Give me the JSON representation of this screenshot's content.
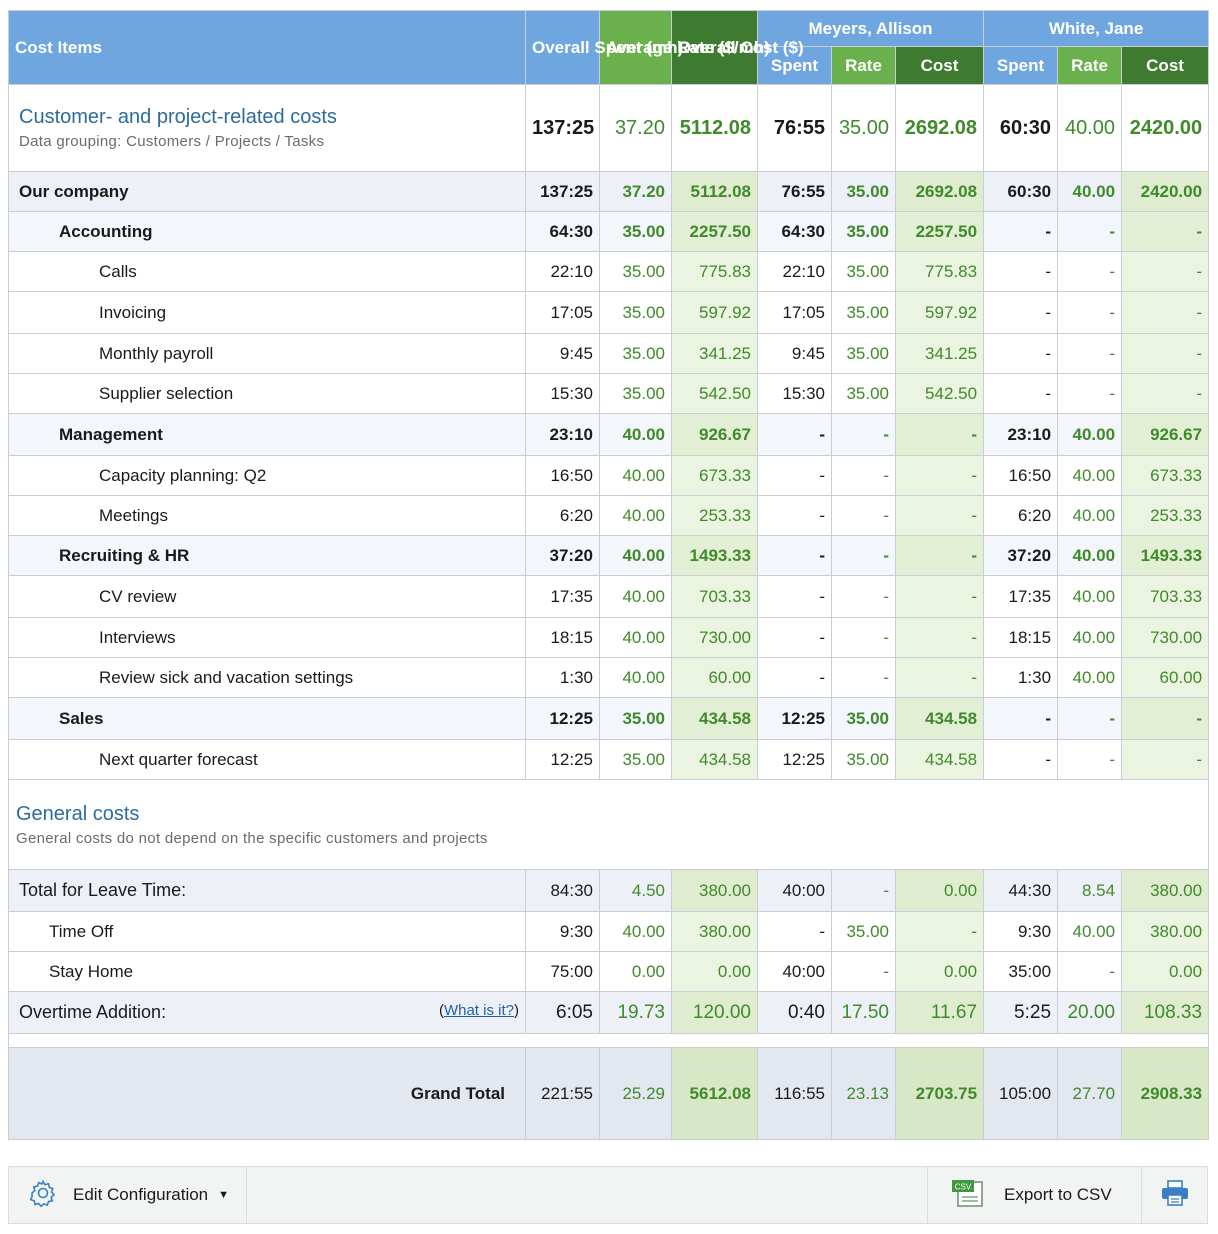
{
  "header": {
    "cost_items": "Cost Items",
    "overall_spent": "Overall Spent (mh)",
    "average_rate": "Average Rate ($/mh)",
    "overall_cost": "Overall Cost ($)",
    "person1": "Meyers, Allison",
    "person2": "White, Jane",
    "spent": "Spent",
    "rate": "Rate",
    "cost": "Cost"
  },
  "section1": {
    "title": "Customer- and project-related costs",
    "subtitle": "Data grouping: Customers / Projects / Tasks",
    "values": [
      "137:25",
      "37.20",
      "5112.08",
      "76:55",
      "35.00",
      "2692.08",
      "60:30",
      "40.00",
      "2420.00"
    ]
  },
  "rows": [
    {
      "label": "Our company",
      "values": [
        "137:25",
        "37.20",
        "5112.08",
        "76:55",
        "35.00",
        "2692.08",
        "60:30",
        "40.00",
        "2420.00"
      ]
    },
    {
      "label": "Accounting",
      "values": [
        "64:30",
        "35.00",
        "2257.50",
        "64:30",
        "35.00",
        "2257.50",
        "-",
        "-",
        "-"
      ]
    },
    {
      "label": "Calls",
      "values": [
        "22:10",
        "35.00",
        "775.83",
        "22:10",
        "35.00",
        "775.83",
        "-",
        "-",
        "-"
      ]
    },
    {
      "label": "Invoicing",
      "values": [
        "17:05",
        "35.00",
        "597.92",
        "17:05",
        "35.00",
        "597.92",
        "-",
        "-",
        "-"
      ]
    },
    {
      "label": "Monthly payroll",
      "values": [
        "9:45",
        "35.00",
        "341.25",
        "9:45",
        "35.00",
        "341.25",
        "-",
        "-",
        "-"
      ]
    },
    {
      "label": "Supplier selection",
      "values": [
        "15:30",
        "35.00",
        "542.50",
        "15:30",
        "35.00",
        "542.50",
        "-",
        "-",
        "-"
      ]
    },
    {
      "label": "Management",
      "values": [
        "23:10",
        "40.00",
        "926.67",
        "-",
        "-",
        "-",
        "23:10",
        "40.00",
        "926.67"
      ]
    },
    {
      "label": "Capacity planning: Q2",
      "values": [
        "16:50",
        "40.00",
        "673.33",
        "-",
        "-",
        "-",
        "16:50",
        "40.00",
        "673.33"
      ]
    },
    {
      "label": "Meetings",
      "values": [
        "6:20",
        "40.00",
        "253.33",
        "-",
        "-",
        "-",
        "6:20",
        "40.00",
        "253.33"
      ]
    },
    {
      "label": "Recruiting & HR",
      "values": [
        "37:20",
        "40.00",
        "1493.33",
        "-",
        "-",
        "-",
        "37:20",
        "40.00",
        "1493.33"
      ]
    },
    {
      "label": "CV review",
      "values": [
        "17:35",
        "40.00",
        "703.33",
        "-",
        "-",
        "-",
        "17:35",
        "40.00",
        "703.33"
      ]
    },
    {
      "label": "Interviews",
      "values": [
        "18:15",
        "40.00",
        "730.00",
        "-",
        "-",
        "-",
        "18:15",
        "40.00",
        "730.00"
      ]
    },
    {
      "label": "Review sick and vacation settings",
      "values": [
        "1:30",
        "40.00",
        "60.00",
        "-",
        "-",
        "-",
        "1:30",
        "40.00",
        "60.00"
      ]
    },
    {
      "label": "Sales",
      "values": [
        "12:25",
        "35.00",
        "434.58",
        "12:25",
        "35.00",
        "434.58",
        "-",
        "-",
        "-"
      ]
    },
    {
      "label": "Next quarter forecast",
      "values": [
        "12:25",
        "35.00",
        "434.58",
        "12:25",
        "35.00",
        "434.58",
        "-",
        "-",
        "-"
      ]
    }
  ],
  "section2": {
    "title": "General costs",
    "subtitle": "General costs do not depend on the specific customers and projects"
  },
  "leave": {
    "label": "Total for Leave Time:",
    "values": [
      "84:30",
      "4.50",
      "380.00",
      "40:00",
      "-",
      "0.00",
      "44:30",
      "8.54",
      "380.00"
    ]
  },
  "leave_rows": [
    {
      "label": "Time Off",
      "values": [
        "9:30",
        "40.00",
        "380.00",
        "-",
        "35.00",
        "-",
        "9:30",
        "40.00",
        "380.00"
      ]
    },
    {
      "label": "Stay Home",
      "values": [
        "75:00",
        "0.00",
        "0.00",
        "40:00",
        "-",
        "0.00",
        "35:00",
        "-",
        "0.00"
      ]
    }
  ],
  "overtime": {
    "label": "Overtime Addition:",
    "what_is_it": "What is it?",
    "paren_open": "(",
    "paren_close": ")",
    "values": [
      "6:05",
      "19.73",
      "120.00",
      "0:40",
      "17.50",
      "11.67",
      "5:25",
      "20.00",
      "108.33"
    ]
  },
  "grand_total": {
    "label": "Grand Total",
    "values": [
      "221:55",
      "25.29",
      "5612.08",
      "116:55",
      "23.13",
      "2703.75",
      "105:00",
      "27.70",
      "2908.33"
    ]
  },
  "toolbar": {
    "edit_config": "Edit Configuration",
    "export_csv": "Export to CSV",
    "csv_badge": "CSV"
  }
}
